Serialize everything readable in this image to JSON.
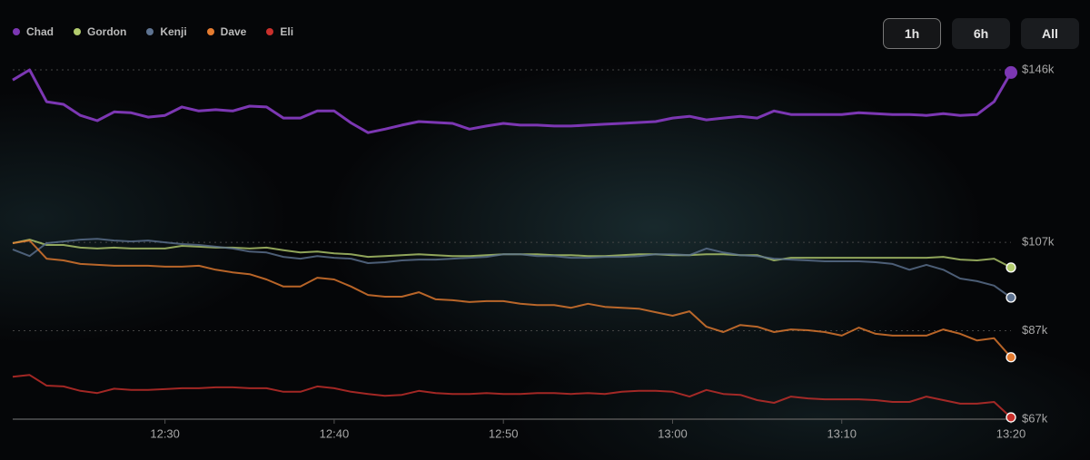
{
  "controls": {
    "ranges": [
      "1h",
      "6h",
      "All"
    ]
  },
  "chart_data": {
    "type": "line",
    "x": [
      "12:21",
      "12:22",
      "12:23",
      "12:24",
      "12:25",
      "12:26",
      "12:27",
      "12:28",
      "12:29",
      "12:30",
      "12:31",
      "12:32",
      "12:33",
      "12:34",
      "12:35",
      "12:36",
      "12:37",
      "12:38",
      "12:39",
      "12:40",
      "12:41",
      "12:42",
      "12:43",
      "12:44",
      "12:45",
      "12:46",
      "12:47",
      "12:48",
      "12:49",
      "12:50",
      "12:51",
      "12:52",
      "12:53",
      "12:54",
      "12:55",
      "12:56",
      "12:57",
      "12:58",
      "12:59",
      "13:00",
      "13:01",
      "13:02",
      "13:03",
      "13:04",
      "13:05",
      "13:06",
      "13:07",
      "13:08",
      "13:09",
      "13:10",
      "13:11",
      "13:12",
      "13:13",
      "13:14",
      "13:15",
      "13:16",
      "13:17",
      "13:18",
      "13:19",
      "13:20"
    ],
    "xlim": [
      "12:21",
      "13:20"
    ],
    "xticks": [
      "12:30",
      "12:40",
      "12:50",
      "13:00",
      "13:10",
      "13:20"
    ],
    "ylim": [
      67,
      146
    ],
    "yticks": [
      {
        "value": 67,
        "label": "$67k"
      },
      {
        "value": 87,
        "label": "$87k"
      },
      {
        "value": 107,
        "label": "$107k"
      },
      {
        "value": 146,
        "label": "$146k"
      }
    ],
    "grid": true,
    "series": [
      {
        "name": "Chad",
        "color": "#7c37b3",
        "values": [
          143.7,
          146,
          138.8,
          138.2,
          135.7,
          134.5,
          136.5,
          136.3,
          135.3,
          135.7,
          137.6,
          136.7,
          137,
          136.7,
          137.8,
          137.6,
          135.1,
          135.1,
          136.7,
          136.7,
          134,
          131.8,
          132.6,
          133.5,
          134.3,
          134.1,
          133.9,
          132.6,
          133.3,
          133.9,
          133.5,
          133.5,
          133.3,
          133.3,
          133.5,
          133.7,
          133.9,
          134.1,
          134.3,
          135.1,
          135.5,
          134.7,
          135.1,
          135.5,
          135.1,
          136.7,
          135.9,
          135.9,
          135.9,
          135.9,
          136.3,
          136.1,
          135.9,
          135.9,
          135.7,
          136.1,
          135.7,
          135.9,
          138.8,
          145.4
        ]
      },
      {
        "name": "Gordon",
        "color": "#b3cc6e",
        "values": [
          106.8,
          107.6,
          106.4,
          106.4,
          105.8,
          105.6,
          105.8,
          105.6,
          105.6,
          105.6,
          106.2,
          106,
          105.8,
          105.8,
          105.6,
          105.8,
          105.2,
          104.7,
          104.9,
          104.5,
          104.3,
          103.7,
          103.9,
          104.1,
          104.3,
          104.1,
          103.9,
          103.9,
          104.1,
          104.3,
          104.3,
          104.3,
          104.1,
          104.1,
          103.9,
          103.9,
          104.1,
          104.3,
          104.3,
          104.1,
          104.1,
          104.3,
          104.3,
          104.1,
          104.1,
          102.9,
          103.5,
          103.5,
          103.5,
          103.5,
          103.5,
          103.5,
          103.5,
          103.5,
          103.5,
          103.7,
          103.1,
          102.9,
          103.3,
          101.3
        ]
      },
      {
        "name": "Kenji",
        "color": "#5e7391",
        "values": [
          105.4,
          103.9,
          106.8,
          107.2,
          107.6,
          107.8,
          107.4,
          107.2,
          107.4,
          107,
          106.6,
          106.4,
          106,
          105.6,
          104.9,
          104.7,
          103.7,
          103.3,
          103.9,
          103.5,
          103.3,
          102.3,
          102.5,
          102.9,
          103.1,
          103.1,
          103.3,
          103.5,
          103.7,
          104.3,
          104.3,
          103.9,
          103.9,
          103.5,
          103.5,
          103.7,
          103.7,
          103.9,
          104.3,
          104.3,
          104.1,
          105.6,
          104.7,
          104.1,
          103.9,
          103.3,
          103.1,
          102.9,
          102.7,
          102.7,
          102.7,
          102.5,
          102.1,
          100.8,
          101.9,
          100.8,
          98.8,
          98.2,
          97.2,
          94.5
        ]
      },
      {
        "name": "Dave",
        "color": "#e57c30",
        "values": [
          106.8,
          107.4,
          103.3,
          102.9,
          102.1,
          101.9,
          101.7,
          101.7,
          101.7,
          101.5,
          101.5,
          101.7,
          100.8,
          100.2,
          99.8,
          98.6,
          97,
          97,
          99,
          98.6,
          97,
          95.1,
          94.7,
          94.7,
          95.7,
          94.1,
          93.9,
          93.5,
          93.7,
          93.7,
          93.1,
          92.8,
          92.8,
          92.2,
          93.1,
          92.4,
          92.2,
          92,
          91.2,
          90.4,
          91.4,
          87.9,
          86.7,
          88.3,
          87.9,
          86.7,
          87.3,
          87.1,
          86.7,
          85.9,
          87.7,
          86.3,
          85.9,
          85.9,
          85.9,
          87.3,
          86.3,
          84.8,
          85.3,
          81
        ]
      },
      {
        "name": "Eli",
        "color": "#c9302c",
        "values": [
          76.6,
          77,
          74.6,
          74.4,
          73.4,
          72.9,
          73.9,
          73.6,
          73.6,
          73.8,
          74,
          74,
          74.2,
          74.2,
          74,
          74,
          73.2,
          73.2,
          74.4,
          74,
          73.2,
          72.7,
          72.3,
          72.5,
          73.4,
          72.9,
          72.7,
          72.7,
          72.9,
          72.7,
          72.7,
          72.9,
          72.9,
          72.7,
          72.9,
          72.7,
          73.2,
          73.4,
          73.4,
          73.2,
          72.1,
          73.6,
          72.7,
          72.5,
          71.3,
          70.7,
          72.1,
          71.7,
          71.5,
          71.5,
          71.5,
          71.3,
          70.9,
          70.9,
          72.1,
          71.3,
          70.5,
          70.5,
          70.9,
          67.4
        ]
      }
    ]
  }
}
